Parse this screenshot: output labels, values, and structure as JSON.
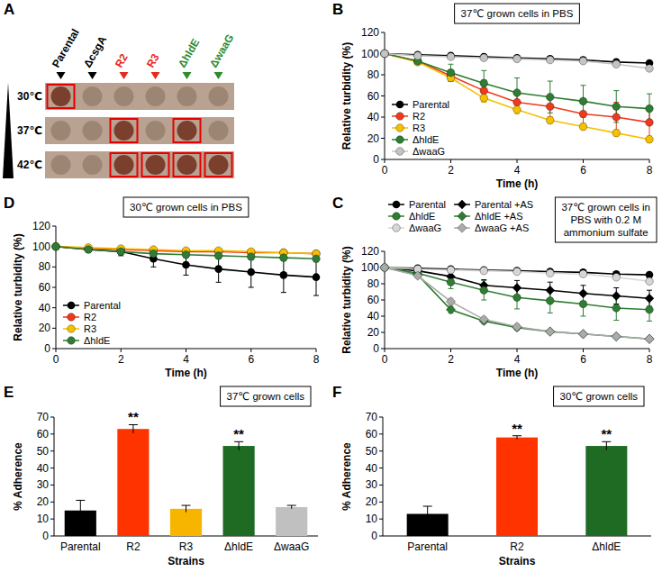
{
  "chart_data": [
    {
      "type": "spot_grid",
      "panel_label": "A",
      "categories": [
        "Parental",
        "ΔcsgA",
        "R2",
        "R3",
        "ΔhldE",
        "ΔwaaG"
      ],
      "colors": [
        "#000000",
        "#000000",
        "#e8281c",
        "#e8281c",
        "#2e8b2e",
        "#2e8b2e"
      ],
      "rows": [
        "30℃",
        "37℃",
        "42℃"
      ],
      "highlighted": [
        [
          true,
          false,
          false,
          false,
          false,
          false
        ],
        [
          false,
          false,
          true,
          false,
          true,
          false
        ],
        [
          false,
          false,
          true,
          true,
          true,
          true
        ]
      ]
    },
    {
      "type": "line",
      "panel_label": "B",
      "title": "37℃ grown cells in PBS",
      "x_label": "Time (h)",
      "y_label": "Relative turbidity (%)",
      "x": [
        0,
        1,
        2,
        3,
        4,
        5,
        6,
        7,
        8
      ],
      "xlim": [
        0,
        8
      ],
      "xticks": [
        0,
        2,
        4,
        6,
        8
      ],
      "ylim": [
        0,
        120
      ],
      "yticks": [
        0,
        20,
        40,
        60,
        80,
        100,
        120
      ],
      "legend": "lower left",
      "series": [
        {
          "name": "Parental",
          "color": "#000000",
          "marker": "circle",
          "values": [
            100,
            99,
            98,
            97,
            96,
            95,
            94,
            92,
            91
          ],
          "errors": [
            0,
            1,
            1,
            1,
            1,
            1,
            1,
            1,
            1
          ]
        },
        {
          "name": "R2",
          "color": "#ee3a1c",
          "marker": "circle",
          "values": [
            100,
            93,
            79,
            65,
            54,
            50,
            43,
            40,
            35
          ],
          "errors": [
            0,
            2,
            5,
            10,
            9,
            10,
            12,
            14,
            15
          ]
        },
        {
          "name": "R3",
          "color": "#f5c000",
          "marker": "circle",
          "values": [
            100,
            92,
            77,
            58,
            47,
            37,
            31,
            25,
            19
          ],
          "errors": [
            0,
            2,
            3,
            4,
            4,
            3,
            3,
            3,
            3
          ]
        },
        {
          "name": "ΔhldE",
          "color": "#2e7d32",
          "marker": "circle",
          "values": [
            100,
            93,
            82,
            72,
            63,
            59,
            55,
            50,
            48
          ],
          "errors": [
            0,
            3,
            8,
            12,
            14,
            15,
            15,
            15,
            14
          ]
        },
        {
          "name": "ΔwaaG",
          "color": "#c4c4c4",
          "marker": "circle",
          "values": [
            100,
            98,
            97,
            96,
            95,
            94,
            93,
            90,
            86
          ],
          "errors": [
            0,
            1,
            1,
            1,
            1,
            1,
            1,
            1,
            2
          ]
        }
      ]
    },
    {
      "type": "line",
      "panel_label": "C",
      "title": "37℃ grown cells in PBS with 0.2 M ammonium sulfate",
      "x_label": "Time (h)",
      "y_label": "Relative turbidity (%)",
      "x": [
        0,
        1,
        2,
        3,
        4,
        5,
        6,
        7,
        8
      ],
      "xlim": [
        0,
        8
      ],
      "xticks": [
        0,
        2,
        4,
        6,
        8
      ],
      "ylim": [
        0,
        120
      ],
      "yticks": [
        0,
        20,
        40,
        60,
        80,
        100,
        120
      ],
      "legend": "top",
      "series": [
        {
          "name": "Parental",
          "color": "#000000",
          "marker": "circle",
          "values": [
            100,
            99,
            98,
            97,
            96,
            95,
            94,
            92,
            91
          ],
          "errors": [
            0,
            1,
            1,
            1,
            1,
            1,
            1,
            1,
            1
          ]
        },
        {
          "name": "Parental +AS",
          "color": "#000000",
          "marker": "diamond",
          "values": [
            100,
            96,
            89,
            78,
            75,
            72,
            68,
            65,
            62
          ],
          "errors": [
            0,
            3,
            5,
            7,
            9,
            10,
            10,
            10,
            10
          ]
        },
        {
          "name": "ΔhldE",
          "color": "#2e7d32",
          "marker": "circle",
          "values": [
            100,
            93,
            82,
            72,
            63,
            59,
            55,
            50,
            48
          ],
          "errors": [
            0,
            3,
            8,
            12,
            14,
            15,
            15,
            15,
            14
          ]
        },
        {
          "name": "ΔhldE +AS",
          "color": "#2e7d32",
          "marker": "diamond",
          "values": [
            100,
            91,
            48,
            34,
            26,
            21,
            18,
            15,
            12
          ],
          "errors": [
            0,
            3,
            4,
            3,
            3,
            2,
            2,
            2,
            2
          ]
        },
        {
          "name": "ΔwaaG",
          "color": "#d6d6d6",
          "marker": "circle",
          "values": [
            100,
            98,
            97,
            96,
            95,
            93,
            92,
            88,
            83
          ],
          "errors": [
            0,
            1,
            1,
            1,
            1,
            1,
            2,
            2,
            2
          ]
        },
        {
          "name": "ΔwaaG +AS",
          "color": "#aaaaaa",
          "marker": "diamond",
          "values": [
            100,
            90,
            58,
            36,
            27,
            21,
            18,
            15,
            12
          ],
          "errors": [
            0,
            3,
            4,
            3,
            3,
            2,
            2,
            2,
            2
          ]
        }
      ]
    },
    {
      "type": "line",
      "panel_label": "D",
      "title": "30℃ grown cells in PBS",
      "x_label": "Time (h)",
      "y_label": "Relative turbidity (%)",
      "x": [
        0,
        1,
        2,
        3,
        4,
        5,
        6,
        7,
        8
      ],
      "xlim": [
        0,
        8
      ],
      "xticks": [
        0,
        2,
        4,
        6,
        8
      ],
      "ylim": [
        0,
        120
      ],
      "yticks": [
        0,
        20,
        40,
        60,
        80,
        100,
        120
      ],
      "legend": "lower left",
      "series": [
        {
          "name": "Parental",
          "color": "#000000",
          "marker": "circle",
          "values": [
            100,
            97,
            95,
            88,
            82,
            78,
            75,
            72,
            70
          ],
          "errors": [
            0,
            2,
            4,
            8,
            10,
            13,
            15,
            17,
            18
          ]
        },
        {
          "name": "R2",
          "color": "#ee3a1c",
          "marker": "circle",
          "values": [
            100,
            98,
            97,
            96,
            95,
            95,
            94,
            94,
            93
          ],
          "errors": [
            0,
            1,
            1,
            1,
            2,
            2,
            2,
            2,
            2
          ]
        },
        {
          "name": "R3",
          "color": "#f5c000",
          "marker": "circle",
          "values": [
            100,
            99,
            98,
            97,
            96,
            96,
            95,
            94,
            93
          ],
          "errors": [
            0,
            1,
            1,
            1,
            1,
            2,
            2,
            2,
            2
          ]
        },
        {
          "name": "ΔhldE",
          "color": "#2e7d32",
          "marker": "circle",
          "values": [
            100,
            97,
            95,
            93,
            92,
            91,
            90,
            89,
            88
          ],
          "errors": [
            0,
            1,
            2,
            2,
            3,
            3,
            3,
            3,
            3
          ]
        }
      ]
    },
    {
      "type": "bar",
      "panel_label": "E",
      "title": "37℃ grown cells",
      "x_label": "Strains",
      "y_label": "% Adherence",
      "categories": [
        "Parental",
        "R2",
        "R3",
        "ΔhldE",
        "ΔwaaG"
      ],
      "values": [
        15,
        63,
        16,
        53,
        17
      ],
      "errors": [
        6,
        2.5,
        2,
        2.5,
        1
      ],
      "colors": [
        "#000000",
        "#ff3300",
        "#f7b500",
        "#1f6b24",
        "#c0c0c0"
      ],
      "annotations": [
        null,
        "**",
        null,
        "**",
        null
      ],
      "ylim": [
        0,
        70
      ],
      "yticks": [
        0,
        10,
        20,
        30,
        40,
        50,
        60,
        70
      ]
    },
    {
      "type": "bar",
      "panel_label": "F",
      "title": "30℃ grown cells",
      "x_label": "Strains",
      "y_label": "% Adherence",
      "categories": [
        "Parental",
        "R2",
        "ΔhldE"
      ],
      "values": [
        13,
        58,
        53
      ],
      "errors": [
        4.5,
        1,
        2.5
      ],
      "colors": [
        "#000000",
        "#ff3300",
        "#1f6b24"
      ],
      "annotations": [
        null,
        "**",
        "**"
      ],
      "ylim": [
        0,
        70
      ],
      "yticks": [
        0,
        10,
        20,
        30,
        40,
        50,
        60,
        70
      ]
    }
  ]
}
